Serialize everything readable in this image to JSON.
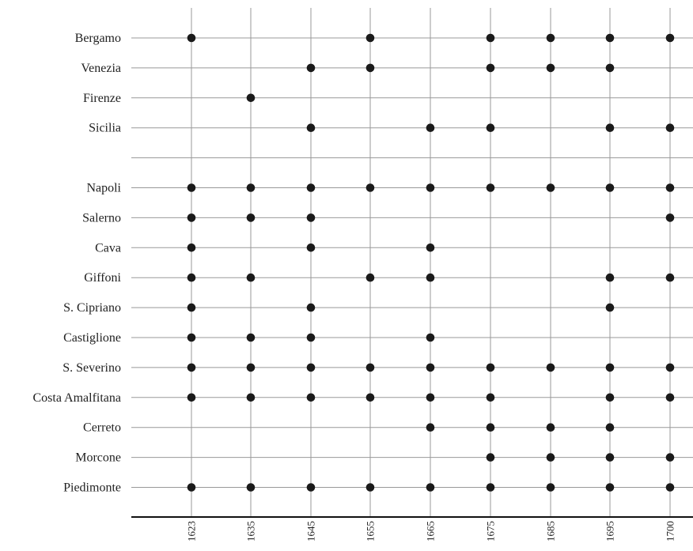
{
  "chart_data": {
    "type": "scatter",
    "title": "",
    "xlabel": "",
    "ylabel": "",
    "x_categories": [
      "1623",
      "1635",
      "1645",
      "1655",
      "1665",
      "1675",
      "1685",
      "1695",
      "1700"
    ],
    "rows": [
      {
        "label": "Bergamo",
        "years": [
          "1623",
          "1655",
          "1675",
          "1685",
          "1695",
          "1700"
        ]
      },
      {
        "label": "Venezia",
        "years": [
          "1645",
          "1655",
          "1675",
          "1685",
          "1695"
        ]
      },
      {
        "label": "Firenze",
        "years": [
          "1635"
        ]
      },
      {
        "label": "Sicilia",
        "years": [
          "1645",
          "1665",
          "1675",
          "1695",
          "1700"
        ]
      },
      {
        "label": "",
        "years": []
      },
      {
        "label": "Napoli",
        "years": [
          "1623",
          "1635",
          "1645",
          "1655",
          "1665",
          "1675",
          "1685",
          "1695",
          "1700"
        ]
      },
      {
        "label": "Salerno",
        "years": [
          "1623",
          "1635",
          "1645",
          "1700"
        ]
      },
      {
        "label": "Cava",
        "years": [
          "1623",
          "1645",
          "1665"
        ]
      },
      {
        "label": "Giffoni",
        "years": [
          "1623",
          "1635",
          "1655",
          "1665",
          "1695",
          "1700"
        ]
      },
      {
        "label": "S. Cipriano",
        "years": [
          "1623",
          "1645",
          "1695"
        ]
      },
      {
        "label": "Castiglione",
        "years": [
          "1623",
          "1635",
          "1645",
          "1665"
        ]
      },
      {
        "label": "S. Severino",
        "years": [
          "1623",
          "1635",
          "1645",
          "1655",
          "1665",
          "1675",
          "1685",
          "1695",
          "1700"
        ]
      },
      {
        "label": "Costa Amalfitana",
        "years": [
          "1623",
          "1635",
          "1645",
          "1655",
          "1665",
          "1675",
          "1695",
          "1700"
        ]
      },
      {
        "label": "Cerreto",
        "years": [
          "1665",
          "1675",
          "1685",
          "1695"
        ]
      },
      {
        "label": "Morcone",
        "years": [
          "1675",
          "1685",
          "1695",
          "1700"
        ]
      },
      {
        "label": "Piedimonte",
        "years": [
          "1623",
          "1635",
          "1645",
          "1655",
          "1665",
          "1675",
          "1685",
          "1695",
          "1700"
        ]
      }
    ],
    "grid": true,
    "colors": {
      "grid": "#999999",
      "dot": "#1a1a1a",
      "axis": "#111111"
    }
  }
}
